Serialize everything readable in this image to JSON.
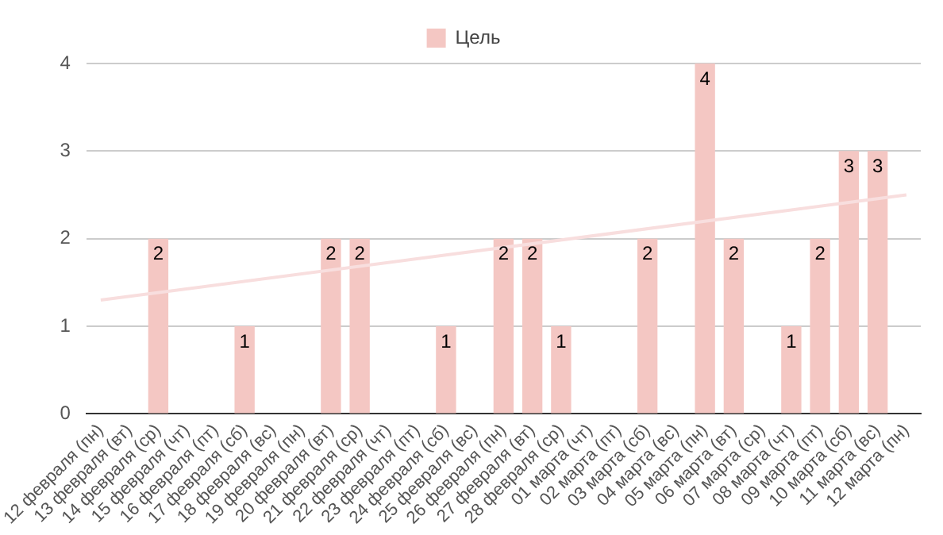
{
  "chart_data": {
    "type": "bar",
    "categories": [
      "12 февраля (пн)",
      "13 февраля (вт)",
      "14 февраля (ср)",
      "15 февраля (чт)",
      "16 февраля (пт)",
      "17 февраля (сб)",
      "18 февраля (вс)",
      "19 февраля (пн)",
      "20 февраля (вт)",
      "21 февраля (ср)",
      "22 февраля (чт)",
      "23 февраля (пт)",
      "24 февраля (сб)",
      "25 февраля (вс)",
      "26 февраля (пн)",
      "27 февраля (вт)",
      "28 февраля (ср)",
      "01 марта (чт)",
      "02 марта (пт)",
      "03 марта (сб)",
      "04 марта (вс)",
      "05 марта (пн)",
      "06 марта (вт)",
      "07 марта (ср)",
      "08 марта (чт)",
      "09 марта (пт)",
      "10 марта (сб)",
      "11 марта (вс)",
      "12 марта (пн)"
    ],
    "series": [
      {
        "name": "Цель",
        "color": "#f4c7c3",
        "values": [
          0,
          0,
          2,
          0,
          0,
          1,
          0,
          0,
          2,
          2,
          0,
          0,
          1,
          0,
          2,
          2,
          1,
          0,
          0,
          2,
          0,
          4,
          2,
          0,
          1,
          2,
          3,
          3,
          0
        ],
        "value_labels": [
          null,
          null,
          "2",
          null,
          null,
          "1",
          null,
          null,
          "2",
          "2",
          null,
          null,
          "1",
          null,
          "2",
          "2",
          "1",
          null,
          null,
          "2",
          null,
          "4",
          "2",
          null,
          "1",
          "2",
          "3",
          "3",
          null
        ]
      },
      {
        "type": "line",
        "color": "#f8dede",
        "x": [
          "12 февраля (пн)",
          "12 марта (пн)"
        ],
        "values": [
          1.3,
          2.5
        ]
      }
    ],
    "ylim": [
      0,
      4
    ],
    "yticks": [
      0,
      1,
      2,
      3,
      4
    ],
    "grid": "y",
    "legend": "top",
    "marker": "none"
  }
}
